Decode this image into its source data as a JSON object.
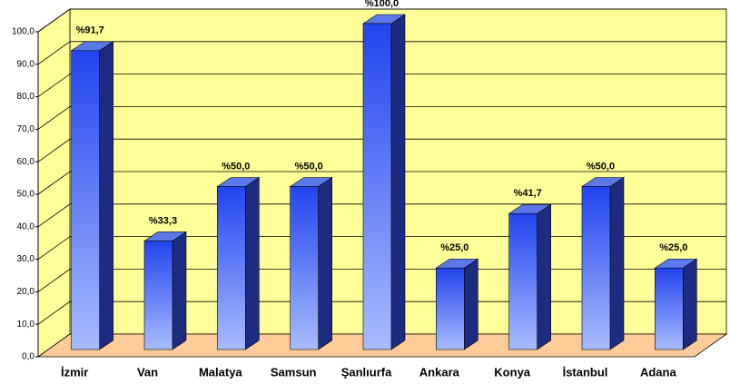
{
  "chart_data": {
    "type": "bar3d",
    "categories": [
      "İzmir",
      "Van",
      "Malatya",
      "Samsun",
      "Şanlıurfa",
      "Ankara",
      "Konya",
      "İstanbul",
      "Adana"
    ],
    "values": [
      91.7,
      33.3,
      50,
      50,
      100,
      25,
      41.7,
      50,
      25
    ],
    "value_labels": [
      "%91,7",
      "%33,3",
      "%50,0",
      "%50,0",
      "%100,0",
      "%25,0",
      "%41,7",
      "%50,0",
      "%25,0"
    ],
    "color": "#3355ee",
    "ylim": [
      0,
      100
    ],
    "yticks": [
      {
        "value": 0,
        "label": "0,0"
      },
      {
        "value": 10,
        "label": "10,0"
      },
      {
        "value": 20,
        "label": "20,0"
      },
      {
        "value": 30,
        "label": "30,0"
      },
      {
        "value": 40,
        "label": "40,0"
      },
      {
        "value": 50,
        "label": "50,0"
      },
      {
        "value": 60,
        "label": "60,0"
      },
      {
        "value": 70,
        "label": "70,0"
      },
      {
        "value": 80,
        "label": "80,0"
      },
      {
        "value": 90,
        "label": "90,0"
      },
      {
        "value": 100,
        "label": "100,0"
      }
    ],
    "grid": true
  }
}
